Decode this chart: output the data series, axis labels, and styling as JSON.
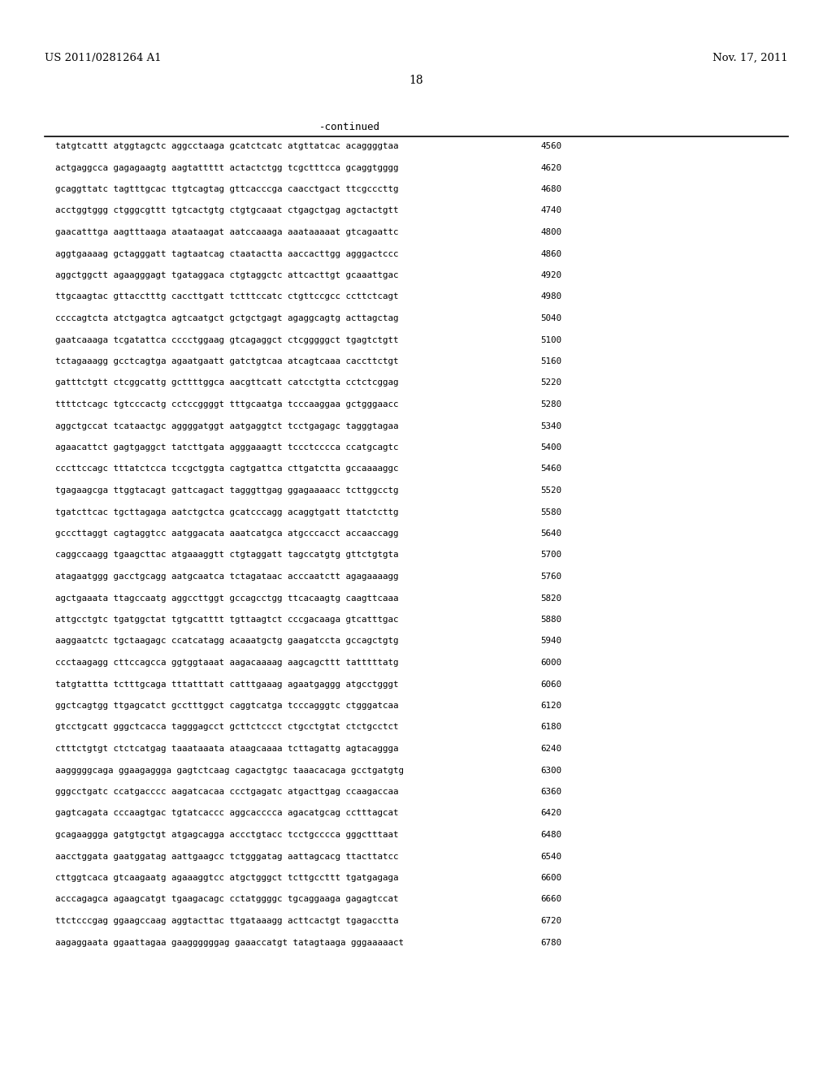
{
  "header_left": "US 2011/0281264 A1",
  "header_right": "Nov. 17, 2011",
  "page_number": "18",
  "continued_label": "-continued",
  "background_color": "#ffffff",
  "text_color": "#000000",
  "sequence_lines": [
    [
      "tatgtcattt atggtagctc aggcctaaga gcatctcatc atgttatcac acaggggtaa",
      "4560"
    ],
    [
      "actgaggcca gagagaagtg aagtattttt actactctgg tcgctttcca gcaggtgggg",
      "4620"
    ],
    [
      "gcaggttatc tagtttgcac ttgtcagtag gttcacccga caacctgact ttcgcccttg",
      "4680"
    ],
    [
      "acctggtggg ctgggcgttt tgtcactgtg ctgtgcaaat ctgagctgag agctactgtt",
      "4740"
    ],
    [
      "gaacatttga aagtttaaga ataataagat aatccaaaga aaataaaaat gtcagaattc",
      "4800"
    ],
    [
      "aggtgaaaag gctagggatt tagtaatcag ctaatactta aaccacttgg agggactccc",
      "4860"
    ],
    [
      "aggctggctt agaagggagt tgataggaca ctgtaggctc attcacttgt gcaaattgac",
      "4920"
    ],
    [
      "ttgcaagtac gttacctttg caccttgatt tctttccatc ctgttccgcc ccttctcagt",
      "4980"
    ],
    [
      "ccccagtcta atctgagtca agtcaatgct gctgctgagt agaggcagtg acttagctag",
      "5040"
    ],
    [
      "gaatcaaaga tcgatattca cccctggaag gtcagaggct ctcgggggct tgagtctgtt",
      "5100"
    ],
    [
      "tctagaaagg gcctcagtga agaatgaatt gatctgtcaa atcagtcaaa caccttctgt",
      "5160"
    ],
    [
      "gatttctgtt ctcggcattg gcttttggca aacgttcatt catcctgtta cctctcggag",
      "5220"
    ],
    [
      "ttttctcagc tgtcccactg cctccggggt tttgcaatga tcccaaggaa gctgggaacc",
      "5280"
    ],
    [
      "aggctgccat tcataactgc aggggatggt aatgaggtct tcctgagagc tagggtagaa",
      "5340"
    ],
    [
      "agaacattct gagtgaggct tatcttgata agggaaagtt tccctcccca ccatgcagtc",
      "5400"
    ],
    [
      "cccttccagc tttatctcca tccgctggta cagtgattca cttgatctta gccaaaaggc",
      "5460"
    ],
    [
      "tgagaagcga ttggtacagt gattcagact tagggttgag ggagaaaacc tcttggcctg",
      "5520"
    ],
    [
      "tgatcttcac tgcttagaga aatctgctca gcatcccagg acaggtgatt ttatctcttg",
      "5580"
    ],
    [
      "gcccttaggt cagtaggtcc aatggacata aaatcatgca atgcccacct accaaccagg",
      "5640"
    ],
    [
      "caggccaagg tgaagcttac atgaaaggtt ctgtaggatt tagccatgtg gttctgtgta",
      "5700"
    ],
    [
      "atagaatggg gacctgcagg aatgcaatca tctagataac acccaatctt agagaaaagg",
      "5760"
    ],
    [
      "agctgaaata ttagccaatg aggccttggt gccagcctgg ttcacaagtg caagttcaaa",
      "5820"
    ],
    [
      "attgcctgtc tgatggctat tgtgcatttt tgttaagtct cccgacaaga gtcatttgac",
      "5880"
    ],
    [
      "aaggaatctc tgctaagagc ccatcatagg acaaatgctg gaagatccta gccagctgtg",
      "5940"
    ],
    [
      "ccctaagagg cttccagcca ggtggtaaat aagacaaaag aagcagcttt tatttttatg",
      "6000"
    ],
    [
      "tatgtattta tctttgcaga tttatttatt catttgaaag agaatgaggg atgcctgggt",
      "6060"
    ],
    [
      "ggctcagtgg ttgagcatct gcctttggct caggtcatga tcccagggtc ctgggatcaa",
      "6120"
    ],
    [
      "gtcctgcatt gggctcacca tagggagcct gcttctccct ctgcctgtat ctctgcctct",
      "6180"
    ],
    [
      "ctttctgtgt ctctcatgag taaataaata ataagcaaaa tcttagattg agtacaggga",
      "6240"
    ],
    [
      "aagggggcaga ggaagaggga gagtctcaag cagactgtgc taaacacaga gcctgatgtg",
      "6300"
    ],
    [
      "gggcctgatc ccatgacccc aagatcacaa ccctgagatc atgacttgag ccaagaccaa",
      "6360"
    ],
    [
      "gagtcagata cccaagtgac tgtatcaccc aggcacccca agacatgcag cctttagcat",
      "6420"
    ],
    [
      "gcagaaggga gatgtgctgt atgagcagga accctgtacc tcctgcccca gggctttaat",
      "6480"
    ],
    [
      "aacctggata gaatggatag aattgaagcc tctgggatag aattagcacg ttacttatcc",
      "6540"
    ],
    [
      "cttggtcaca gtcaagaatg agaaaggtcc atgctgggct tcttgccttt tgatgagaga",
      "6600"
    ],
    [
      "acccagagca agaagcatgt tgaagacagc cctatggggc tgcaggaaga gagagtccat",
      "6660"
    ],
    [
      "ttctcccgag ggaagccaag aggtacttac ttgataaagg acttcactgt tgagacctta",
      "6720"
    ],
    [
      "aagaggaata ggaattagaa gaaggggggag gaaaccatgt tatagtaaga gggaaaaact",
      "6780"
    ]
  ]
}
